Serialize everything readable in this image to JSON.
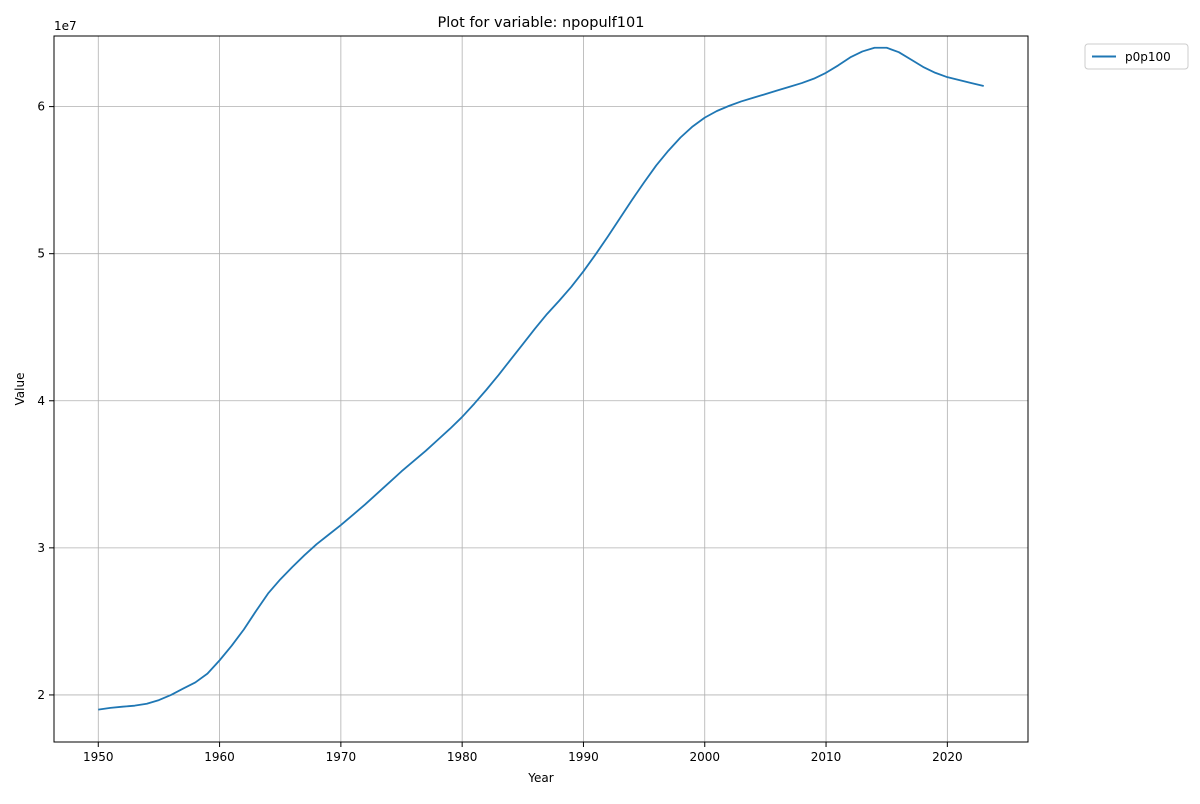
{
  "chart_data": {
    "type": "line",
    "title": "Plot for variable: npopulf101",
    "xlabel": "Year",
    "ylabel": "Value",
    "y_offset_label": "1e7",
    "y_scale_factor": 10000000,
    "xlim": [
      1946.35,
      2026.65
    ],
    "ylim": [
      16800000,
      64800000
    ],
    "x_ticks": [
      1950,
      1960,
      1970,
      1980,
      1990,
      2000,
      2010,
      2020
    ],
    "y_ticks": [
      2,
      3,
      4,
      5,
      6
    ],
    "grid": true,
    "legend_position": "upper-right-outside",
    "colors": {
      "series": "#1f77b4",
      "grid": "#b0b0b0",
      "axes": "#000000"
    },
    "series": [
      {
        "name": "p0p100",
        "x": [
          1950,
          1951,
          1952,
          1953,
          1954,
          1955,
          1956,
          1957,
          1958,
          1959,
          1960,
          1961,
          1962,
          1963,
          1964,
          1965,
          1966,
          1967,
          1968,
          1969,
          1970,
          1971,
          1972,
          1973,
          1974,
          1975,
          1976,
          1977,
          1978,
          1979,
          1980,
          1981,
          1982,
          1983,
          1984,
          1985,
          1986,
          1987,
          1988,
          1989,
          1990,
          1991,
          1992,
          1993,
          1994,
          1995,
          1996,
          1997,
          1998,
          1999,
          2000,
          2001,
          2002,
          2003,
          2004,
          2005,
          2006,
          2007,
          2008,
          2009,
          2010,
          2011,
          2012,
          2013,
          2014,
          2015,
          2016,
          2017,
          2018,
          2019,
          2020,
          2021,
          2022,
          2023
        ],
        "values": [
          19000000,
          19120000,
          19200000,
          19270000,
          19400000,
          19650000,
          20000000,
          20430000,
          20850000,
          21450000,
          22350000,
          23350000,
          24450000,
          25700000,
          26900000,
          27850000,
          28700000,
          29500000,
          30250000,
          30900000,
          31550000,
          32250000,
          32950000,
          33700000,
          34450000,
          35200000,
          35900000,
          36600000,
          37350000,
          38100000,
          38900000,
          39800000,
          40750000,
          41750000,
          42800000,
          43850000,
          44900000,
          45900000,
          46800000,
          47750000,
          48800000,
          49950000,
          51150000,
          52400000,
          53650000,
          54850000,
          56000000,
          57000000,
          57900000,
          58650000,
          59250000,
          59700000,
          60050000,
          60350000,
          60600000,
          60850000,
          61100000,
          61350000,
          61600000,
          61900000,
          62300000,
          62800000,
          63350000,
          63750000,
          64000000,
          64000000,
          63700000,
          63200000,
          62700000,
          62300000,
          62000000,
          61800000,
          61600000,
          61400000
        ]
      }
    ]
  }
}
